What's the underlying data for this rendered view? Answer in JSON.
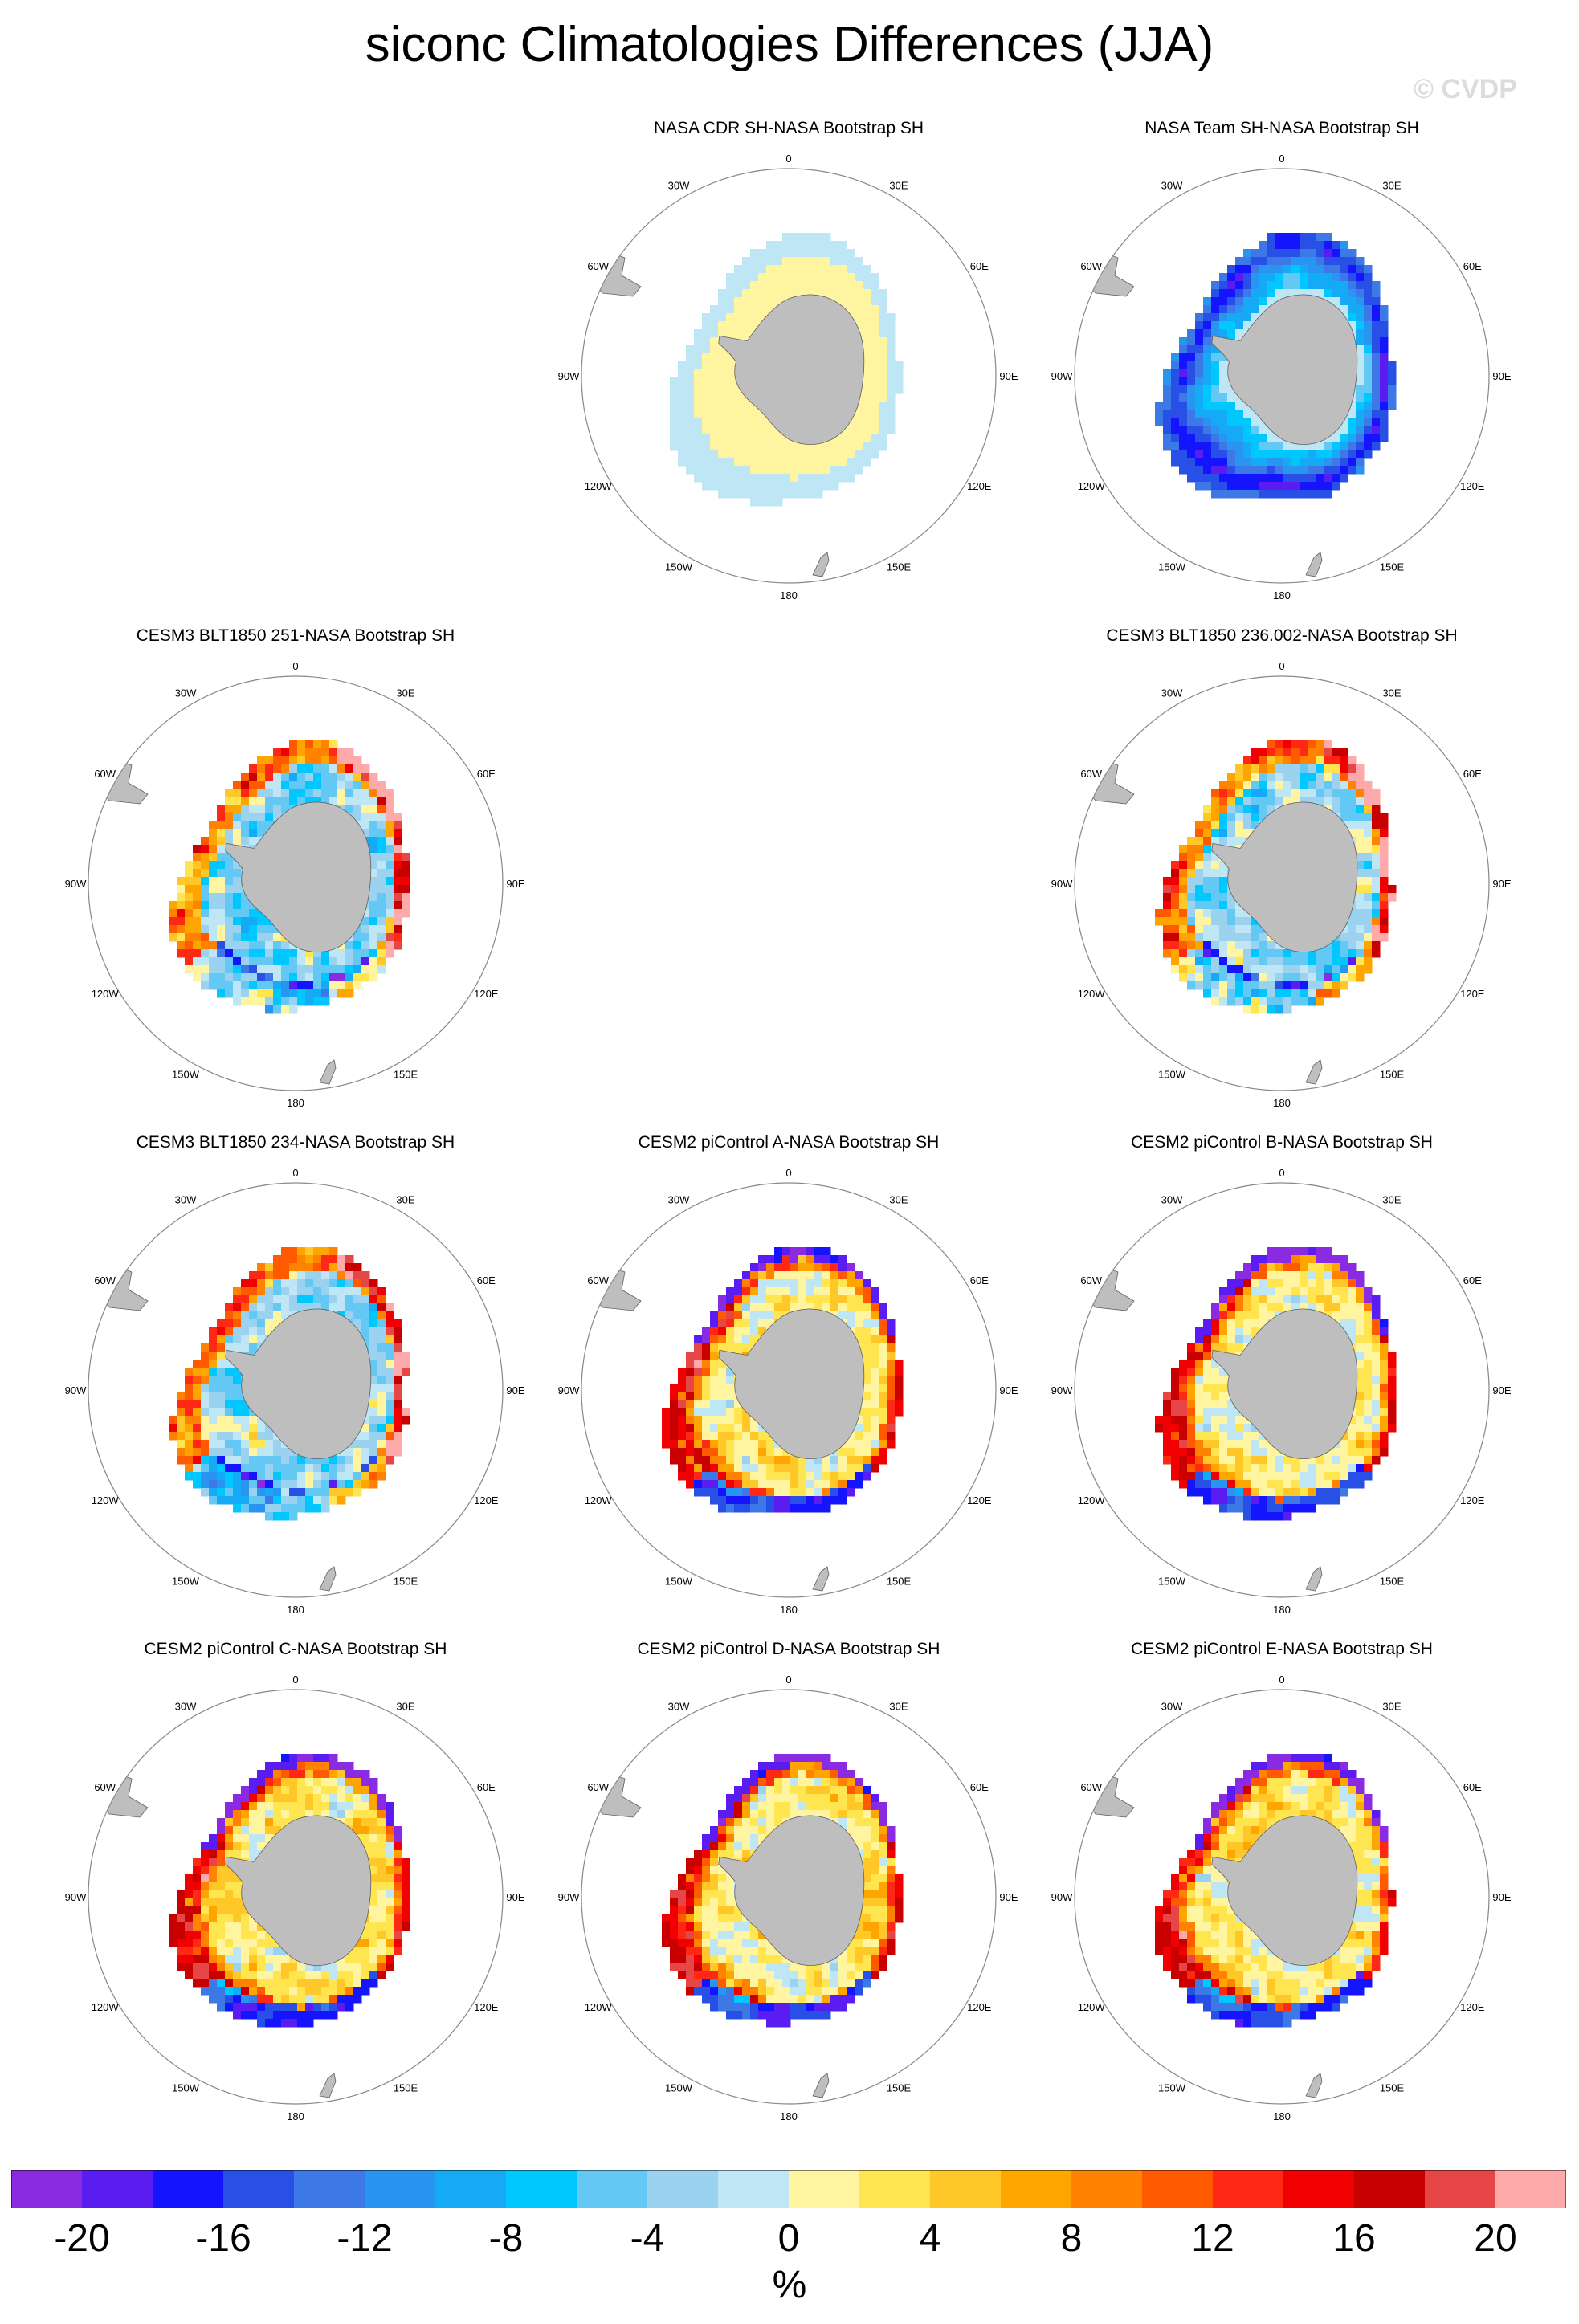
{
  "title": "siconc Climatologies Differences (JJA)",
  "watermark": "© CVDP",
  "lon_labels": [
    "0",
    "30E",
    "60E",
    "90E",
    "120E",
    "150E",
    "180",
    "150W",
    "120W",
    "90W",
    "60W",
    "30W"
  ],
  "chart_data": {
    "type": "heatmap",
    "projection": "south-polar-stereographic",
    "variable": "siconc",
    "season": "JJA",
    "units": "%",
    "colorbar": {
      "levels": [
        -20,
        -18,
        -16,
        -14,
        -12,
        -10,
        -8,
        -6,
        -4,
        -2,
        0,
        2,
        4,
        6,
        8,
        10,
        12,
        14,
        16,
        18,
        20
      ],
      "tick_labels": [
        "-20",
        "-16",
        "-12",
        "-8",
        "-4",
        "0",
        "4",
        "8",
        "12",
        "16",
        "20"
      ],
      "colors": [
        "#8a2be2",
        "#5a1cf0",
        "#1414ff",
        "#2850e6",
        "#3c78e6",
        "#2896f0",
        "#14aaf5",
        "#00c8ff",
        "#64c8f5",
        "#9bd2f0",
        "#bee6f5",
        "#fff5a0",
        "#ffe650",
        "#ffc828",
        "#ffa500",
        "#ff8200",
        "#ff5a00",
        "#ff2814",
        "#f00000",
        "#c80000",
        "#e64646",
        "#ffaaaa"
      ],
      "units_label": "%"
    },
    "panels": [
      {
        "title": "NASA CDR SH-NASA Bootstrap SH",
        "pattern": "cdr"
      },
      {
        "title": "NASA Team SH-NASA Bootstrap SH",
        "pattern": "team"
      },
      {
        "title": "CESM3 BLT1850 251-NASA Bootstrap SH",
        "pattern": "cesm3"
      },
      {
        "title": "CESM3 BLT1850 236.002-NASA Bootstrap SH",
        "pattern": "cesm3"
      },
      {
        "title": "CESM3 BLT1850 234-NASA Bootstrap SH",
        "pattern": "cesm3"
      },
      {
        "title": "CESM2 piControl A-NASA Bootstrap SH",
        "pattern": "cesm2"
      },
      {
        "title": "CESM2 piControl B-NASA Bootstrap SH",
        "pattern": "cesm2"
      },
      {
        "title": "CESM2 piControl C-NASA Bootstrap SH",
        "pattern": "cesm2"
      },
      {
        "title": "CESM2 piControl D-NASA Bootstrap SH",
        "pattern": "cesm2"
      },
      {
        "title": "CESM2 piControl E-NASA Bootstrap SH",
        "pattern": "cesm2"
      }
    ]
  }
}
